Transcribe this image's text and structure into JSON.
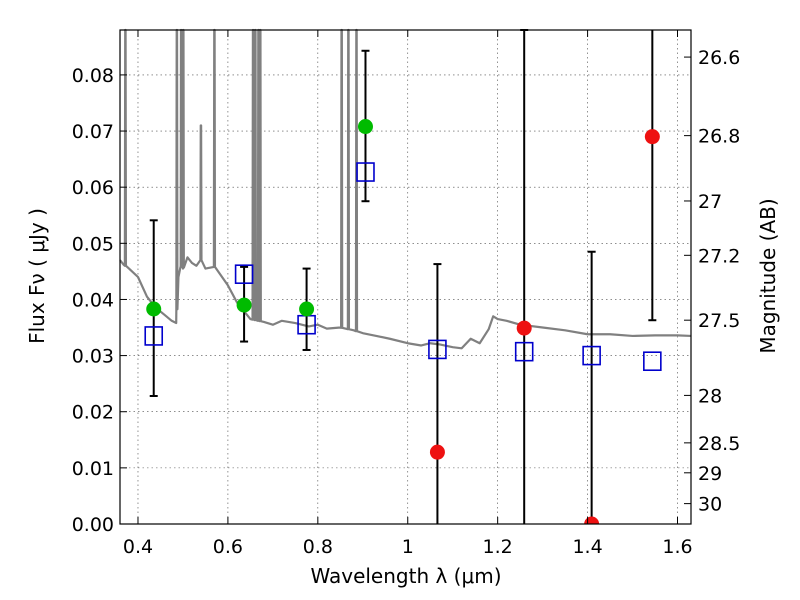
{
  "chart_data": {
    "type": "scatter",
    "title": "",
    "xlabel": "Wavelength  λ (μm)",
    "ylabel": "Flux  Fν  ( μJy )",
    "y2label": "Magnitude (AB)",
    "xlim": [
      0.36,
      1.63
    ],
    "ylim": [
      0.0,
      0.088
    ],
    "grid": true,
    "x_ticks": [
      0.4,
      0.6,
      0.8,
      1.0,
      1.2,
      1.4,
      1.6
    ],
    "x_tick_labels": [
      "0.4",
      "0.6",
      "0.8",
      "1",
      "1.2",
      "1.4",
      "1.6"
    ],
    "y_ticks": [
      0.0,
      0.01,
      0.02,
      0.03,
      0.04,
      0.05,
      0.06,
      0.07,
      0.08
    ],
    "y_tick_labels": [
      "0.00",
      "0.01",
      "0.02",
      "0.03",
      "0.04",
      "0.05",
      "0.06",
      "0.07",
      "0.08"
    ],
    "y2_ticks": [
      26.6,
      26.8,
      27.0,
      27.2,
      27.5,
      28.0,
      28.5,
      29.0,
      30.0
    ],
    "y2_tick_labels": [
      "26.6",
      "26.8",
      "27",
      "27.2",
      "27.5",
      "28",
      "28.5",
      "29",
      "30"
    ],
    "colors": {
      "template": "#808080",
      "detected": "#00bb00",
      "nondetected": "#ee1111",
      "model": "#0000cc",
      "errorbar": "#000000"
    },
    "observed_detections": [
      {
        "x": 0.435,
        "y": 0.0383,
        "yerr_low": 0.0155,
        "yerr_high": 0.0158
      },
      {
        "x": 0.636,
        "y": 0.039,
        "yerr_low": 0.0065,
        "yerr_high": 0.0068
      },
      {
        "x": 0.775,
        "y": 0.0383,
        "yerr_low": 0.0073,
        "yerr_high": 0.0072
      },
      {
        "x": 0.906,
        "y": 0.0708,
        "yerr_low": 0.0133,
        "yerr_high": 0.0135
      }
    ],
    "observed_nondetections": [
      {
        "x": 1.066,
        "y": 0.0128,
        "yerr_low": 0.0128,
        "yerr_high": 0.0335
      },
      {
        "x": 1.259,
        "y": 0.0349,
        "yerr_low": 0.0349,
        "yerr_high": 0.0531
      },
      {
        "x": 1.409,
        "y": 0.0,
        "yerr_low": 0.0,
        "yerr_high": 0.0485
      },
      {
        "x": 1.544,
        "y": 0.069,
        "yerr_low": 0.0327,
        "yerr_high": 0.019
      }
    ],
    "model_photometry": [
      {
        "x": 0.435,
        "y": 0.0335
      },
      {
        "x": 0.636,
        "y": 0.0445
      },
      {
        "x": 0.775,
        "y": 0.0355
      },
      {
        "x": 0.906,
        "y": 0.0627
      },
      {
        "x": 1.066,
        "y": 0.0311
      },
      {
        "x": 1.259,
        "y": 0.0307
      },
      {
        "x": 1.409,
        "y": 0.03
      },
      {
        "x": 1.544,
        "y": 0.029
      }
    ],
    "template_spectrum": {
      "x": [
        0.36,
        0.365,
        0.368,
        0.372,
        0.38,
        0.4,
        0.42,
        0.44,
        0.46,
        0.475,
        0.485,
        0.49,
        0.495,
        0.5,
        0.51,
        0.52,
        0.53,
        0.54,
        0.55,
        0.57,
        0.6,
        0.62,
        0.65,
        0.68,
        0.7,
        0.72,
        0.75,
        0.78,
        0.8,
        0.82,
        0.85,
        0.88,
        0.9,
        0.93,
        0.96,
        1.0,
        1.03,
        1.05,
        1.07,
        1.1,
        1.12,
        1.14,
        1.16,
        1.18,
        1.19,
        1.2,
        1.22,
        1.25,
        1.3,
        1.35,
        1.4,
        1.45,
        1.5,
        1.55,
        1.6,
        1.63
      ],
      "y": [
        0.047,
        0.0465,
        0.0462,
        0.046,
        0.0455,
        0.044,
        0.0405,
        0.0385,
        0.0372,
        0.0362,
        0.0358,
        0.044,
        0.046,
        0.0455,
        0.0475,
        0.0465,
        0.046,
        0.047,
        0.0455,
        0.0458,
        0.0425,
        0.0395,
        0.0365,
        0.036,
        0.0355,
        0.0362,
        0.0358,
        0.0352,
        0.0355,
        0.0348,
        0.035,
        0.0345,
        0.034,
        0.0335,
        0.033,
        0.0322,
        0.0318,
        0.0322,
        0.032,
        0.0315,
        0.0313,
        0.033,
        0.0322,
        0.0347,
        0.037,
        0.0365,
        0.0362,
        0.0355,
        0.035,
        0.0345,
        0.0338,
        0.0338,
        0.0335,
        0.0336,
        0.0336,
        0.0335
      ]
    },
    "template_emission_lines": [
      {
        "x": 0.372,
        "peak": 0.088
      },
      {
        "x": 0.4865,
        "peak": 0.088
      },
      {
        "x": 0.496,
        "peak": 0.088
      },
      {
        "x": 0.5008,
        "peak": 0.088
      },
      {
        "x": 0.54,
        "peak": 0.071
      },
      {
        "x": 0.57,
        "peak": 0.088
      },
      {
        "x": 0.656,
        "peak": 0.088
      },
      {
        "x": 0.661,
        "peak": 0.088
      },
      {
        "x": 0.668,
        "peak": 0.088
      },
      {
        "x": 0.672,
        "peak": 0.088
      },
      {
        "x": 0.853,
        "peak": 0.088
      },
      {
        "x": 0.868,
        "peak": 0.088
      },
      {
        "x": 0.886,
        "peak": 0.088
      }
    ]
  }
}
